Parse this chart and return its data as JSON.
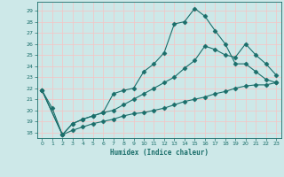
{
  "xlabel": "Humidex (Indice chaleur)",
  "bg_color": "#cde8e8",
  "grid_color": "#f0c8c8",
  "line_color": "#1a6e6a",
  "xlim": [
    -0.5,
    23.5
  ],
  "ylim": [
    17.5,
    29.8
  ],
  "xticks": [
    0,
    1,
    2,
    3,
    4,
    5,
    6,
    7,
    8,
    9,
    10,
    11,
    12,
    13,
    14,
    15,
    16,
    17,
    18,
    19,
    20,
    21,
    22,
    23
  ],
  "yticks": [
    18,
    19,
    20,
    21,
    22,
    23,
    24,
    25,
    26,
    27,
    28,
    29
  ],
  "line1_x": [
    0,
    1,
    2,
    3,
    4,
    5,
    6,
    7,
    8,
    9,
    10,
    11,
    12,
    13,
    14,
    15,
    16,
    17,
    18,
    19,
    20,
    21,
    22,
    23
  ],
  "line1_y": [
    21.8,
    20.2,
    17.8,
    18.8,
    19.2,
    19.5,
    19.8,
    21.5,
    21.8,
    22.0,
    23.5,
    24.2,
    25.2,
    27.8,
    28.0,
    29.2,
    28.5,
    27.2,
    26.0,
    24.2,
    24.2,
    23.5,
    22.8,
    22.5
  ],
  "line2_x": [
    0,
    2,
    3,
    4,
    5,
    6,
    7,
    8,
    9,
    10,
    11,
    12,
    13,
    14,
    15,
    16,
    17,
    18,
    19,
    20,
    21,
    22,
    23
  ],
  "line2_y": [
    21.8,
    17.8,
    18.8,
    19.2,
    19.5,
    19.8,
    20.0,
    20.5,
    21.0,
    21.5,
    22.0,
    22.5,
    23.0,
    23.8,
    24.5,
    25.8,
    25.5,
    25.0,
    24.8,
    26.0,
    25.0,
    24.2,
    23.2
  ],
  "line3_x": [
    0,
    2,
    3,
    4,
    5,
    6,
    7,
    8,
    9,
    10,
    11,
    12,
    13,
    14,
    15,
    16,
    17,
    18,
    19,
    20,
    21,
    22,
    23
  ],
  "line3_y": [
    21.8,
    17.8,
    18.2,
    18.5,
    18.8,
    19.0,
    19.2,
    19.5,
    19.7,
    19.8,
    20.0,
    20.2,
    20.5,
    20.8,
    21.0,
    21.2,
    21.5,
    21.7,
    22.0,
    22.2,
    22.3,
    22.3,
    22.5
  ]
}
